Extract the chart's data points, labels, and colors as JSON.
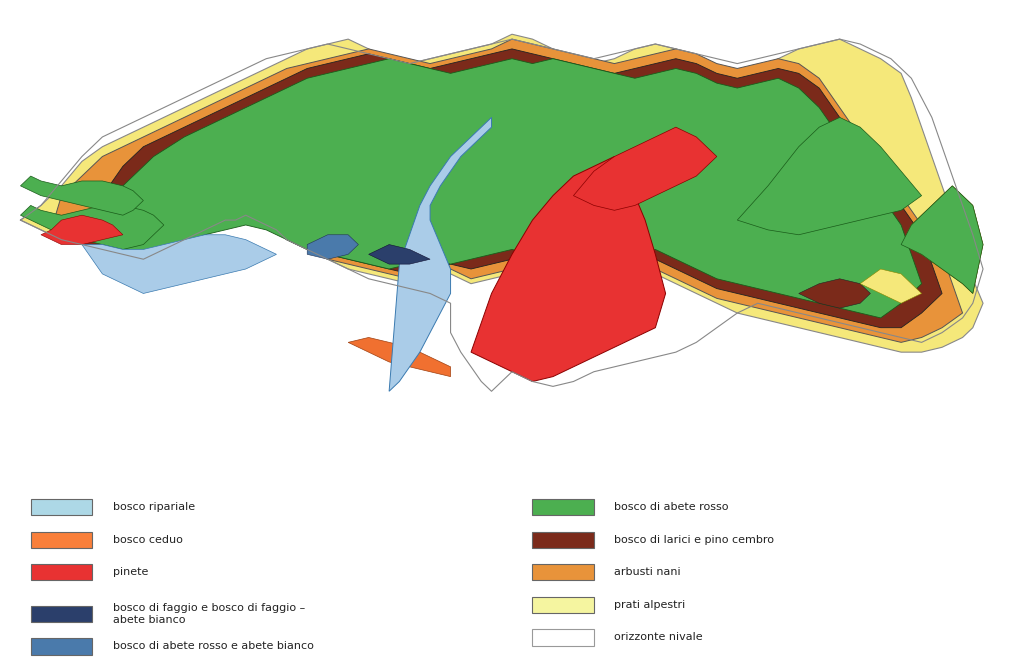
{
  "legend_left": [
    {
      "color": "#add8e6",
      "label": "bosco ripariale"
    },
    {
      "color": "#f97f3a",
      "label": "bosco ceduo"
    },
    {
      "color": "#e83232",
      "label": "pinete"
    },
    {
      "color": "#2b3f6b",
      "label": "bosco di faggio e bosco di faggio –\nabete bianco"
    },
    {
      "color": "#4a7aab",
      "label": "bosco di abete rosso e abete bianco"
    }
  ],
  "legend_right": [
    {
      "color": "#4caf50",
      "label": "bosco di abete rosso"
    },
    {
      "color": "#7b2a1a",
      "label": "bosco di larici e pino cembro"
    },
    {
      "color": "#e8933a",
      "label": "arbusti nani"
    },
    {
      "color": "#f5f5a0",
      "label": "prati alpestri"
    },
    {
      "color": "#ffffff",
      "label": "orizzonte nivale"
    }
  ],
  "background_color": "#ffffff",
  "fig_width": 10.24,
  "fig_height": 6.7,
  "dpi": 100
}
